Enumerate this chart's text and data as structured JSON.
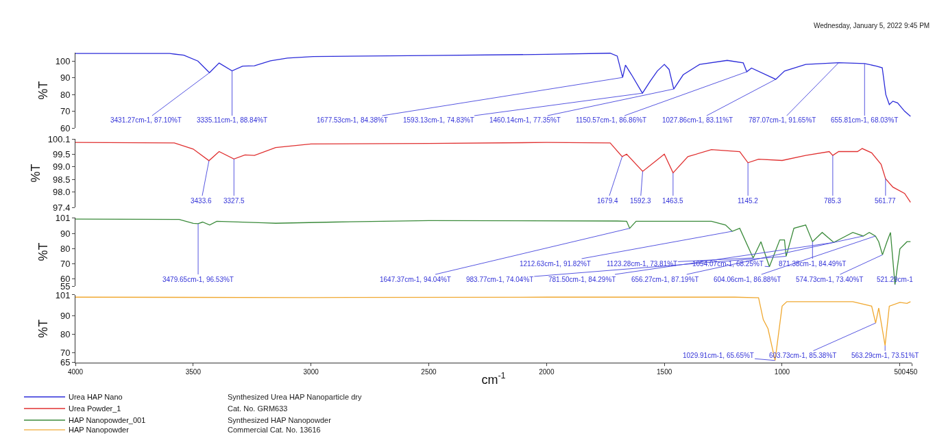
{
  "chart_data": [
    {
      "type": "line",
      "subtitle": "Wednesday, January 5, 2022 9:45 PM",
      "ylabel": "%T",
      "xlim": [
        4000,
        450
      ],
      "xticks": [
        4000,
        3500,
        3000,
        2500,
        2000,
        1500,
        1000,
        500,
        450
      ],
      "ylim": [
        60,
        105
      ],
      "yticks": [
        100,
        90,
        80,
        70,
        60
      ],
      "tick_labels": "y",
      "legend": "bottom left",
      "x": [
        4000,
        3600,
        3540,
        3480,
        3431,
        3390,
        3335,
        3290,
        3240,
        3172,
        3100,
        2990,
        2500,
        2000,
        1730,
        1700,
        1677,
        1665,
        1640,
        1593,
        1560,
        1530,
        1500,
        1480,
        1460,
        1420,
        1350,
        1233,
        1165,
        1150,
        1130,
        1027,
        990,
        900,
        760,
        650,
        600,
        575,
        560,
        545,
        530,
        510,
        480,
        455
      ],
      "series": [
        {
          "name": "Urea HAP Nano",
          "color": "#2b2bd9",
          "values": [
            104.5,
            104.5,
            103.5,
            100,
            93,
            98.8,
            94.1,
            97,
            97.2,
            100.1,
            101.8,
            102.7,
            103.3,
            104,
            104.7,
            103,
            90.2,
            97.6,
            92,
            80.8,
            88,
            94,
            98,
            95,
            83.3,
            91.8,
            98,
            100.4,
            98.9,
            93.6,
            95.8,
            89.1,
            94,
            98,
            99,
            98.5,
            97,
            96,
            80,
            74,
            76,
            75,
            70,
            67
          ]
        }
      ],
      "annotations": [
        "Synthesized Urea HAP Nanoparticle dry",
        {
          "text": "3431.27cm-1, 87.10%T",
          "x": 3431,
          "y": 93
        },
        {
          "text": "3335.11cm-1, 88.84%T",
          "x": 3335,
          "y": 94.1
        },
        {
          "text": "1677.53cm-1, 84.38%T",
          "x": 1677,
          "y": 90.2
        },
        {
          "text": "1593.13cm-1, 74.83%T",
          "x": 1593,
          "y": 80.8
        },
        {
          "text": "1460.14cm-1, 77.35%T",
          "x": 1460,
          "y": 83.3
        },
        {
          "text": "1150.57cm-1, 86.86%T",
          "x": 1150,
          "y": 93.6
        },
        {
          "text": "1027.86cm-1, 83.11%T",
          "x": 1027,
          "y": 89.1
        },
        {
          "text": "787.07cm-1, 91.65%T",
          "x": 760,
          "y": 99
        },
        {
          "text": "655.81cm-1, 68.03%T",
          "x": 650,
          "y": 98.5
        }
      ]
    },
    {
      "type": "line",
      "ylabel": "%T",
      "xlim": [
        4000,
        450
      ],
      "xticks": [
        4000,
        3500,
        3000,
        2500,
        2000,
        1500,
        1000,
        500,
        450
      ],
      "ylim": [
        97.4,
        100.1
      ],
      "yticks": [
        97.4,
        {
          "value": 98,
          "label": "98.0"
        },
        98.5,
        {
          "value": 99,
          "label": "99.0"
        },
        99.5,
        100.1
      ],
      "tick_labels": "y",
      "legend": "bottom left",
      "x": [
        4000,
        3580,
        3500,
        3433,
        3390,
        3327,
        3280,
        3240,
        3150,
        3000,
        2500,
        2000,
        1730,
        1679,
        1660,
        1592,
        1540,
        1500,
        1463,
        1400,
        1300,
        1180,
        1145,
        1100,
        1000,
        900,
        800,
        785,
        760,
        680,
        660,
        620,
        580,
        561,
        530,
        480,
        455
      ],
      "series": [
        {
          "name": "Urea Powder_1",
          "color": "#e03030",
          "values": [
            99.96,
            99.94,
            99.7,
            99.24,
            99.6,
            99.31,
            99.47,
            99.45,
            99.76,
            99.9,
            99.92,
            99.96,
            99.94,
            99.4,
            99.5,
            98.82,
            99.2,
            99.5,
            98.76,
            99.4,
            99.68,
            99.6,
            99.16,
            99.3,
            99.25,
            99.45,
            99.6,
            99.45,
            99.6,
            99.6,
            99.72,
            99.55,
            99.1,
            98.53,
            98.2,
            97.95,
            97.6
          ]
        }
      ],
      "annotations": [
        "Cat. No. GRM633",
        {
          "text": "3433.6",
          "x": 3433,
          "y": 99.24
        },
        {
          "text": "3327.5",
          "x": 3327,
          "y": 99.31
        },
        {
          "text": "1679.4",
          "x": 1679,
          "y": 99.4
        },
        {
          "text": "1592.3",
          "x": 1592,
          "y": 98.82
        },
        {
          "text": "1463.5",
          "x": 1463,
          "y": 98.76
        },
        {
          "text": "1145.2",
          "x": 1145,
          "y": 99.16
        },
        {
          "text": "785.3",
          "x": 785,
          "y": 99.45
        },
        {
          "text": "561.77",
          "x": 561,
          "y": 98.53
        }
      ]
    },
    {
      "type": "line",
      "ylabel": "%T",
      "xlim": [
        4000,
        450
      ],
      "xticks": [
        4000,
        3500,
        3000,
        2500,
        2000,
        1500,
        1000,
        500,
        450
      ],
      "ylim": [
        55,
        101
      ],
      "yticks": [
        101,
        90,
        80,
        70,
        60,
        55
      ],
      "tick_labels": "y",
      "legend": "bottom left",
      "x": [
        4000,
        3560,
        3500,
        3479,
        3460,
        3430,
        3400,
        3200,
        3150,
        2900,
        2500,
        1700,
        1660,
        1647,
        1620,
        1300,
        1240,
        1212,
        1180,
        1123,
        1090,
        1054,
        1010,
        990,
        983,
        950,
        900,
        871,
        830,
        781,
        700,
        656,
        630,
        604,
        590,
        574,
        555,
        540,
        521,
        500,
        470,
        455
      ],
      "series": [
        {
          "name": "HAP Nanopowder_001",
          "color": "#3a8a3a",
          "values": [
            100,
            99.8,
            97.1,
            96.9,
            98,
            96,
            98.5,
            97.5,
            97.2,
            98,
            99,
            98.7,
            98.5,
            93.8,
            98.5,
            98.5,
            96,
            91.8,
            93.8,
            73.9,
            84.8,
            68,
            86,
            86,
            75,
            93.8,
            96,
            84.8,
            91,
            84.3,
            91,
            88.6,
            91,
            88.6,
            84.8,
            76,
            84.8,
            91,
            56,
            80,
            84.8,
            84.8
          ]
        }
      ],
      "annotations": [
        "Synthesized HAP Nanopowder",
        {
          "text": "3479.65cm-1, 96.53%T",
          "x": 3479,
          "y": 96.9
        },
        {
          "text": "1647.37cm-1, 94.04%T",
          "x": 1647,
          "y": 93.8
        },
        {
          "text": "1212.63cm-1, 91.82%T",
          "x": 1212,
          "y": 91.8
        },
        {
          "text": "1123.28cm-1, 73.81%T",
          "x": 1123,
          "y": 73.9
        },
        {
          "text": "1054.07cm-1, 68.25%T",
          "x": 1054,
          "y": 68
        },
        {
          "text": "983.77cm-1, 74.04%T",
          "x": 983,
          "y": 75
        },
        {
          "text": "871.38cm-1, 84.49%T",
          "x": 871,
          "y": 84.8
        },
        {
          "text": "781.50cm-1, 84.29%T",
          "x": 781,
          "y": 84.3
        },
        {
          "text": "656.27cm-1, 87.19%T",
          "x": 656,
          "y": 88.6
        },
        {
          "text": "604.06cm-1, 86.88%T",
          "x": 604,
          "y": 88.6
        },
        {
          "text": "574.73cm-1, 73.40%T",
          "x": 574,
          "y": 76
        },
        {
          "text": "521.29cm-1",
          "x": 521,
          "y": 56
        }
      ]
    },
    {
      "type": "line",
      "xlabel": "cm$^{-1}$",
      "ylabel": "%T",
      "xlim": [
        4000,
        450
      ],
      "xticks": [
        4000,
        3500,
        3000,
        2500,
        2000,
        1500,
        1000,
        500,
        450
      ],
      "ylim": [
        65,
        101
      ],
      "yticks": [
        101,
        90,
        80,
        70,
        65
      ],
      "legend": "bottom left",
      "x": [
        4000,
        3000,
        2000,
        1200,
        1100,
        1080,
        1060,
        1029.91,
        1000,
        980,
        900,
        700,
        620,
        603,
        590,
        563,
        545,
        500,
        470,
        455
      ],
      "series": [
        {
          "name": "HAP Nanopowder",
          "color": "#f0a830",
          "values": [
            99.8,
            99.6,
            99.8,
            99.8,
            99.5,
            87.8,
            83,
            66,
            95,
            97.4,
            97.4,
            97.4,
            95,
            86,
            94,
            74,
            95,
            97,
            96.5,
            97.4
          ]
        }
      ],
      "annotations": [
        "Commercial Cat. No. 13616",
        {
          "text": "1029.91cm-1, 65.65%T",
          "x": 1029.91,
          "y": 66
        },
        {
          "text": "563.29cm-1, 73.51%T",
          "x": 563,
          "y": 74
        },
        {
          "text": "603.73cm-1, 85.38%T",
          "x": 603,
          "y": 86
        }
      ]
    }
  ]
}
